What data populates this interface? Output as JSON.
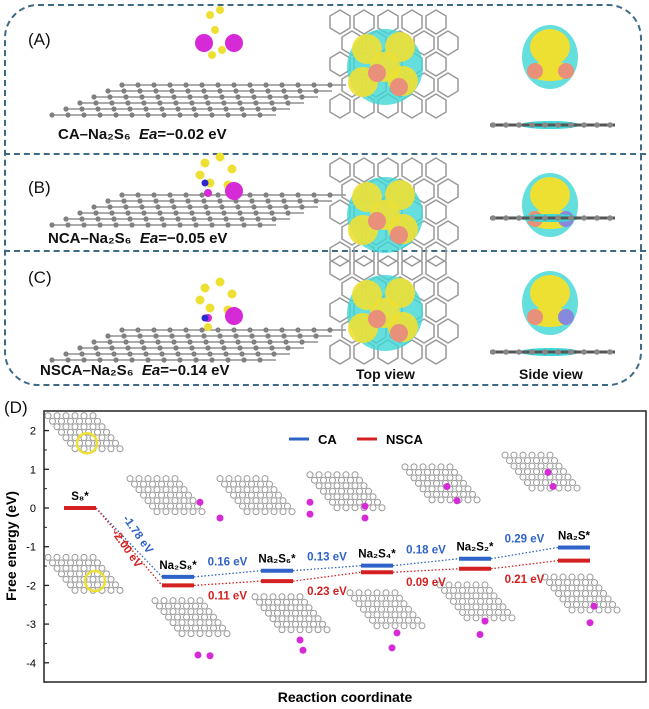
{
  "panels": [
    {
      "letter": "(A)",
      "name": "CA–Na₂S₆",
      "ea_label": "Ea",
      "ea_value": "=−0.02 eV"
    },
    {
      "letter": "(B)",
      "name": "NCA–Na₂S₆",
      "ea_label": "Ea",
      "ea_value": "=−0.05 eV"
    },
    {
      "letter": "(C)",
      "name": "NSCA–Na₂S₆",
      "ea_label": "Ea",
      "ea_value": "=−0.14 eV"
    }
  ],
  "view_labels": {
    "top": "Top view",
    "side": "Side view"
  },
  "panel_d_letter": "(D)",
  "colors": {
    "ca": "#2f63c8",
    "nsca": "#d42020",
    "frame": "#3e6a86",
    "sulfur": "#eee033",
    "sodium": "#d52ad5",
    "carbon": "#808080",
    "nitrogen": "#2a2ad0",
    "cyan": "#3ed6d6",
    "salmon": "#e8907a"
  },
  "chart_data": {
    "type": "line",
    "title": "",
    "xlabel": "Reaction coordinate",
    "ylabel": "Free energy (eV)",
    "ylim": [
      -4.5,
      2.4
    ],
    "yticks": [
      "2",
      "1",
      "0",
      "-1",
      "-2",
      "-3",
      "-4"
    ],
    "ytick_values": [
      2,
      1,
      0,
      -1,
      -2,
      -3,
      -4
    ],
    "categories": [
      "S₈*",
      "Na₂S₈*",
      "Na₂S₆*",
      "Na₂S₄*",
      "Na₂S₂*",
      "Na₂S*"
    ],
    "legend_position": "top-center",
    "series": [
      {
        "name": "CA",
        "values": [
          0.0,
          -1.78,
          -1.62,
          -1.49,
          -1.31,
          -1.02
        ],
        "step_labels": [
          "-1.78 eV",
          "0.16 eV",
          "0.13 eV",
          "0.18 eV",
          "0.29 eV"
        ]
      },
      {
        "name": "NSCA",
        "values": [
          0.0,
          -2.0,
          -1.89,
          -1.66,
          -1.57,
          -1.36
        ],
        "step_labels": [
          "-2.00 eV",
          "0.11 eV",
          "0.23 eV",
          "0.09 eV",
          "0.21 eV"
        ]
      }
    ]
  }
}
